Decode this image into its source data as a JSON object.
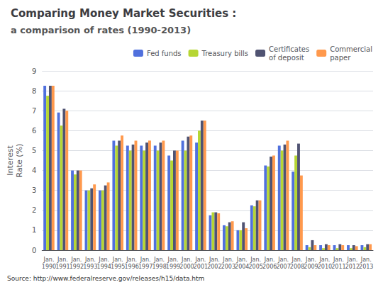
{
  "chart_data": {
    "type": "bar",
    "title": "Comparing Money Market Securities :",
    "subtitle": "a comparison of rates (1990-2013)",
    "y_label": "Interest\nRate (%)",
    "annotation": "Source: http://www.federalreserve.gov/releases/h15/data.htm",
    "categories": [
      "Jan.\n1990",
      "Jan.\n1991",
      "Jan.\n1992",
      "Jan.\n1993",
      "Jan.\n1994",
      "Jan.\n1995",
      "Jan.\n1996",
      "Jan.\n1997",
      "Jan.\n1998",
      "Jan.\n1999",
      "Jan.\n2000",
      "Jan.\n2001",
      "Jan.\n2002",
      "Jan.\n2003",
      "Jan.\n2004",
      "Jan.\n2005",
      "Jan.\n2006",
      "Jan.\n2007",
      "Jan.\n2008",
      "Jan.\n2009",
      "Jan.\n2010",
      "Jan.\n2011",
      "Jan.\n2012",
      "Jan.\n2013"
    ],
    "series": [
      {
        "name": "Fed funds",
        "values": [
          8.25,
          6.91,
          4.0,
          3.0,
          3.0,
          5.5,
          5.25,
          5.25,
          5.25,
          4.75,
          5.5,
          5.4,
          1.75,
          1.25,
          1.0,
          2.25,
          4.25,
          5.25,
          3.94,
          0.25,
          0.25,
          0.25,
          0.25,
          0.25
        ]
      },
      {
        "name": "Treasury bills",
        "values": [
          7.75,
          6.25,
          3.8,
          3.0,
          3.0,
          5.25,
          5.0,
          5.0,
          5.0,
          4.5,
          5.0,
          6.0,
          1.9,
          1.2,
          1.0,
          2.2,
          4.2,
          5.0,
          4.75,
          0.15,
          0.1,
          0.1,
          0.1,
          0.15
        ]
      },
      {
        "name": "Certificates\nof deposit",
        "values": [
          8.25,
          7.1,
          4.0,
          3.1,
          3.25,
          5.5,
          5.3,
          5.4,
          5.4,
          5.0,
          5.7,
          6.5,
          1.9,
          1.4,
          1.4,
          2.5,
          4.7,
          5.3,
          5.35,
          0.5,
          0.3,
          0.3,
          0.25,
          0.3
        ]
      },
      {
        "name": "Commercial\npaper",
        "values": [
          8.25,
          7.0,
          4.0,
          3.3,
          3.4,
          5.75,
          5.5,
          5.5,
          5.5,
          5.0,
          5.75,
          6.5,
          1.85,
          1.45,
          1.1,
          2.5,
          4.75,
          5.5,
          3.75,
          0.25,
          0.25,
          0.25,
          0.2,
          0.3
        ]
      }
    ],
    "ylim": [
      0,
      9
    ],
    "yticks": [
      0,
      1,
      2,
      3,
      4,
      5,
      6,
      7,
      8,
      9
    ],
    "grid": true,
    "legend": "upper right"
  }
}
